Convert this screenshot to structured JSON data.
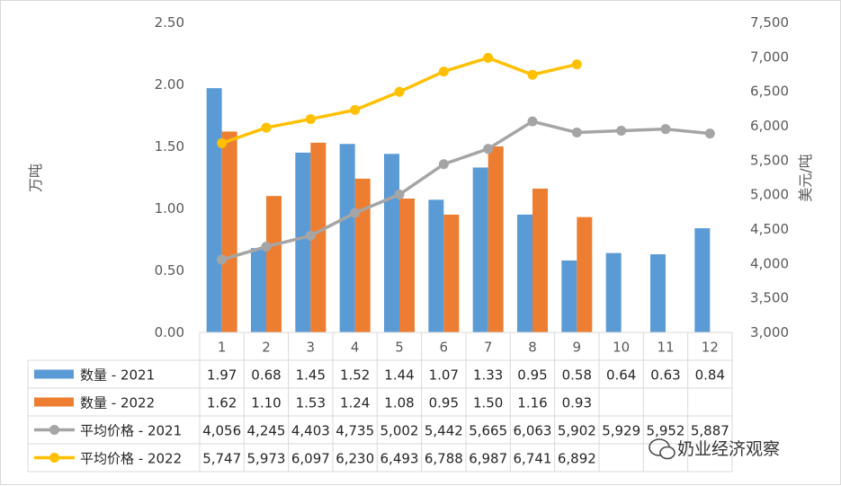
{
  "chart_data": {
    "type": "bar+line",
    "categories": [
      "1",
      "2",
      "3",
      "4",
      "5",
      "6",
      "7",
      "8",
      "9",
      "10",
      "11",
      "12"
    ],
    "y_left": {
      "label": "万吨",
      "ylim": [
        0,
        2.5
      ],
      "ticks": [
        "0.00",
        "0.50",
        "1.00",
        "1.50",
        "2.00",
        "2.50"
      ]
    },
    "y_right": {
      "label": "美元/吨",
      "ylim": [
        3000,
        7500
      ],
      "ticks": [
        "3,000",
        "3,500",
        "4,000",
        "4,500",
        "5,000",
        "5,500",
        "6,000",
        "6,500",
        "7,000",
        "7,500"
      ]
    },
    "series": [
      {
        "name": "数量 - 2021",
        "kind": "bar",
        "axis": "left",
        "color": "#5B9BD5",
        "values": [
          1.97,
          0.68,
          1.45,
          1.52,
          1.44,
          1.07,
          1.33,
          0.95,
          0.58,
          0.64,
          0.63,
          0.84
        ],
        "labels": [
          "1.97",
          "0.68",
          "1.45",
          "1.52",
          "1.44",
          "1.07",
          "1.33",
          "0.95",
          "0.58",
          "0.64",
          "0.63",
          "0.84"
        ]
      },
      {
        "name": "数量 - 2022",
        "kind": "bar",
        "axis": "left",
        "color": "#ED7D31",
        "values": [
          1.62,
          1.1,
          1.53,
          1.24,
          1.08,
          0.95,
          1.5,
          1.16,
          0.93,
          null,
          null,
          null
        ],
        "labels": [
          "1.62",
          "1.10",
          "1.53",
          "1.24",
          "1.08",
          "0.95",
          "1.50",
          "1.16",
          "0.93",
          "",
          "",
          ""
        ]
      },
      {
        "name": "平均价格 - 2021",
        "kind": "line",
        "axis": "right",
        "color": "#A5A5A5",
        "values": [
          4056,
          4245,
          4403,
          4735,
          5002,
          5442,
          5665,
          6063,
          5902,
          5929,
          5952,
          5887
        ],
        "labels": [
          "4,056",
          "4,245",
          "4,403",
          "4,735",
          "5,002",
          "5,442",
          "5,665",
          "6,063",
          "5,902",
          "5,929",
          "5,952",
          "5,887"
        ]
      },
      {
        "name": "平均价格 - 2022",
        "kind": "line",
        "axis": "right",
        "color": "#FFC000",
        "values": [
          5747,
          5973,
          6097,
          6230,
          6493,
          6788,
          6987,
          6741,
          6892,
          null,
          null,
          null
        ],
        "labels": [
          "5,747",
          "5,973",
          "6,097",
          "6,230",
          "6,493",
          "6,788",
          "6,987",
          "6,741",
          "6,892",
          "",
          "",
          ""
        ]
      }
    ],
    "grid": false,
    "legend": "data-table-below",
    "watermark": "奶业经济观察"
  }
}
